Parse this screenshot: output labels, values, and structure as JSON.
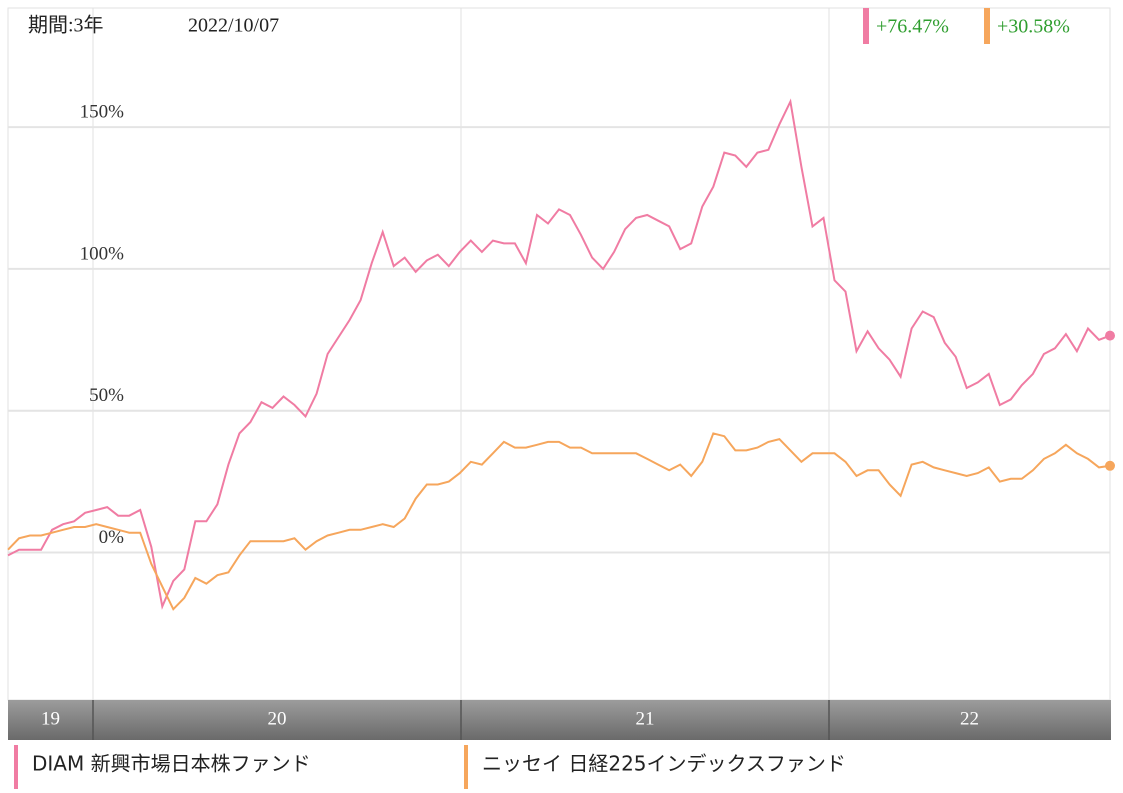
{
  "chart_data": {
    "type": "line",
    "period": "期間:3年",
    "date": "2022/10/07",
    "ylim": [
      -52,
      192
    ],
    "yticks": [
      {
        "value": 0,
        "label": "0%"
      },
      {
        "value": 50,
        "label": "50%"
      },
      {
        "value": 100,
        "label": "100%"
      },
      {
        "value": 150,
        "label": "150%"
      }
    ],
    "grid": true,
    "x_labels": [
      "19",
      "20",
      "21",
      "22"
    ],
    "series": [
      {
        "name": "DIAM 新興市場日本株ファンド",
        "color": "#f07ca3",
        "change_label": "+76.47%",
        "values": [
          -1,
          1,
          1,
          1,
          8,
          10,
          11,
          14,
          15,
          16,
          13,
          13,
          15,
          2,
          -19,
          -10,
          -6,
          11,
          11,
          17,
          31,
          42,
          46,
          53,
          51,
          55,
          52,
          48,
          56,
          70,
          76,
          82,
          89,
          102,
          113,
          101,
          104,
          99,
          103,
          105,
          101,
          106,
          110,
          106,
          110,
          109,
          109,
          102,
          119,
          116,
          121,
          119,
          112,
          104,
          100,
          106,
          114,
          118,
          119,
          117,
          115,
          107,
          109,
          122,
          129,
          141,
          140,
          136,
          141,
          142,
          151,
          159,
          136,
          115,
          118,
          96,
          92,
          71,
          78,
          72,
          68,
          62,
          79,
          85,
          83,
          74,
          69,
          58,
          60,
          63,
          52,
          54,
          59,
          63,
          70,
          72,
          77,
          71,
          79,
          75,
          76.47
        ]
      },
      {
        "name": "ニッセイ 日経225インデックスファンド",
        "color": "#f6a65c",
        "change_label": "+30.58%",
        "values": [
          1,
          5,
          6,
          6,
          7,
          8,
          9,
          9,
          10,
          9,
          8,
          7,
          7,
          -4,
          -12,
          -20,
          -16,
          -9,
          -11,
          -8,
          -7,
          -1,
          4,
          4,
          4,
          4,
          5,
          1,
          4,
          6,
          7,
          8,
          8,
          9,
          10,
          9,
          12,
          19,
          24,
          24,
          25,
          28,
          32,
          31,
          35,
          39,
          37,
          37,
          38,
          39,
          39,
          37,
          37,
          35,
          35,
          35,
          35,
          35,
          33,
          31,
          29,
          31,
          27,
          32,
          42,
          41,
          36,
          36,
          37,
          39,
          40,
          36,
          32,
          35,
          35,
          35,
          32,
          27,
          29,
          29,
          24,
          20,
          31,
          32,
          30,
          29,
          28,
          27,
          28,
          30,
          25,
          26,
          26,
          29,
          33,
          35,
          38,
          35,
          33,
          30,
          30.58
        ]
      }
    ]
  }
}
